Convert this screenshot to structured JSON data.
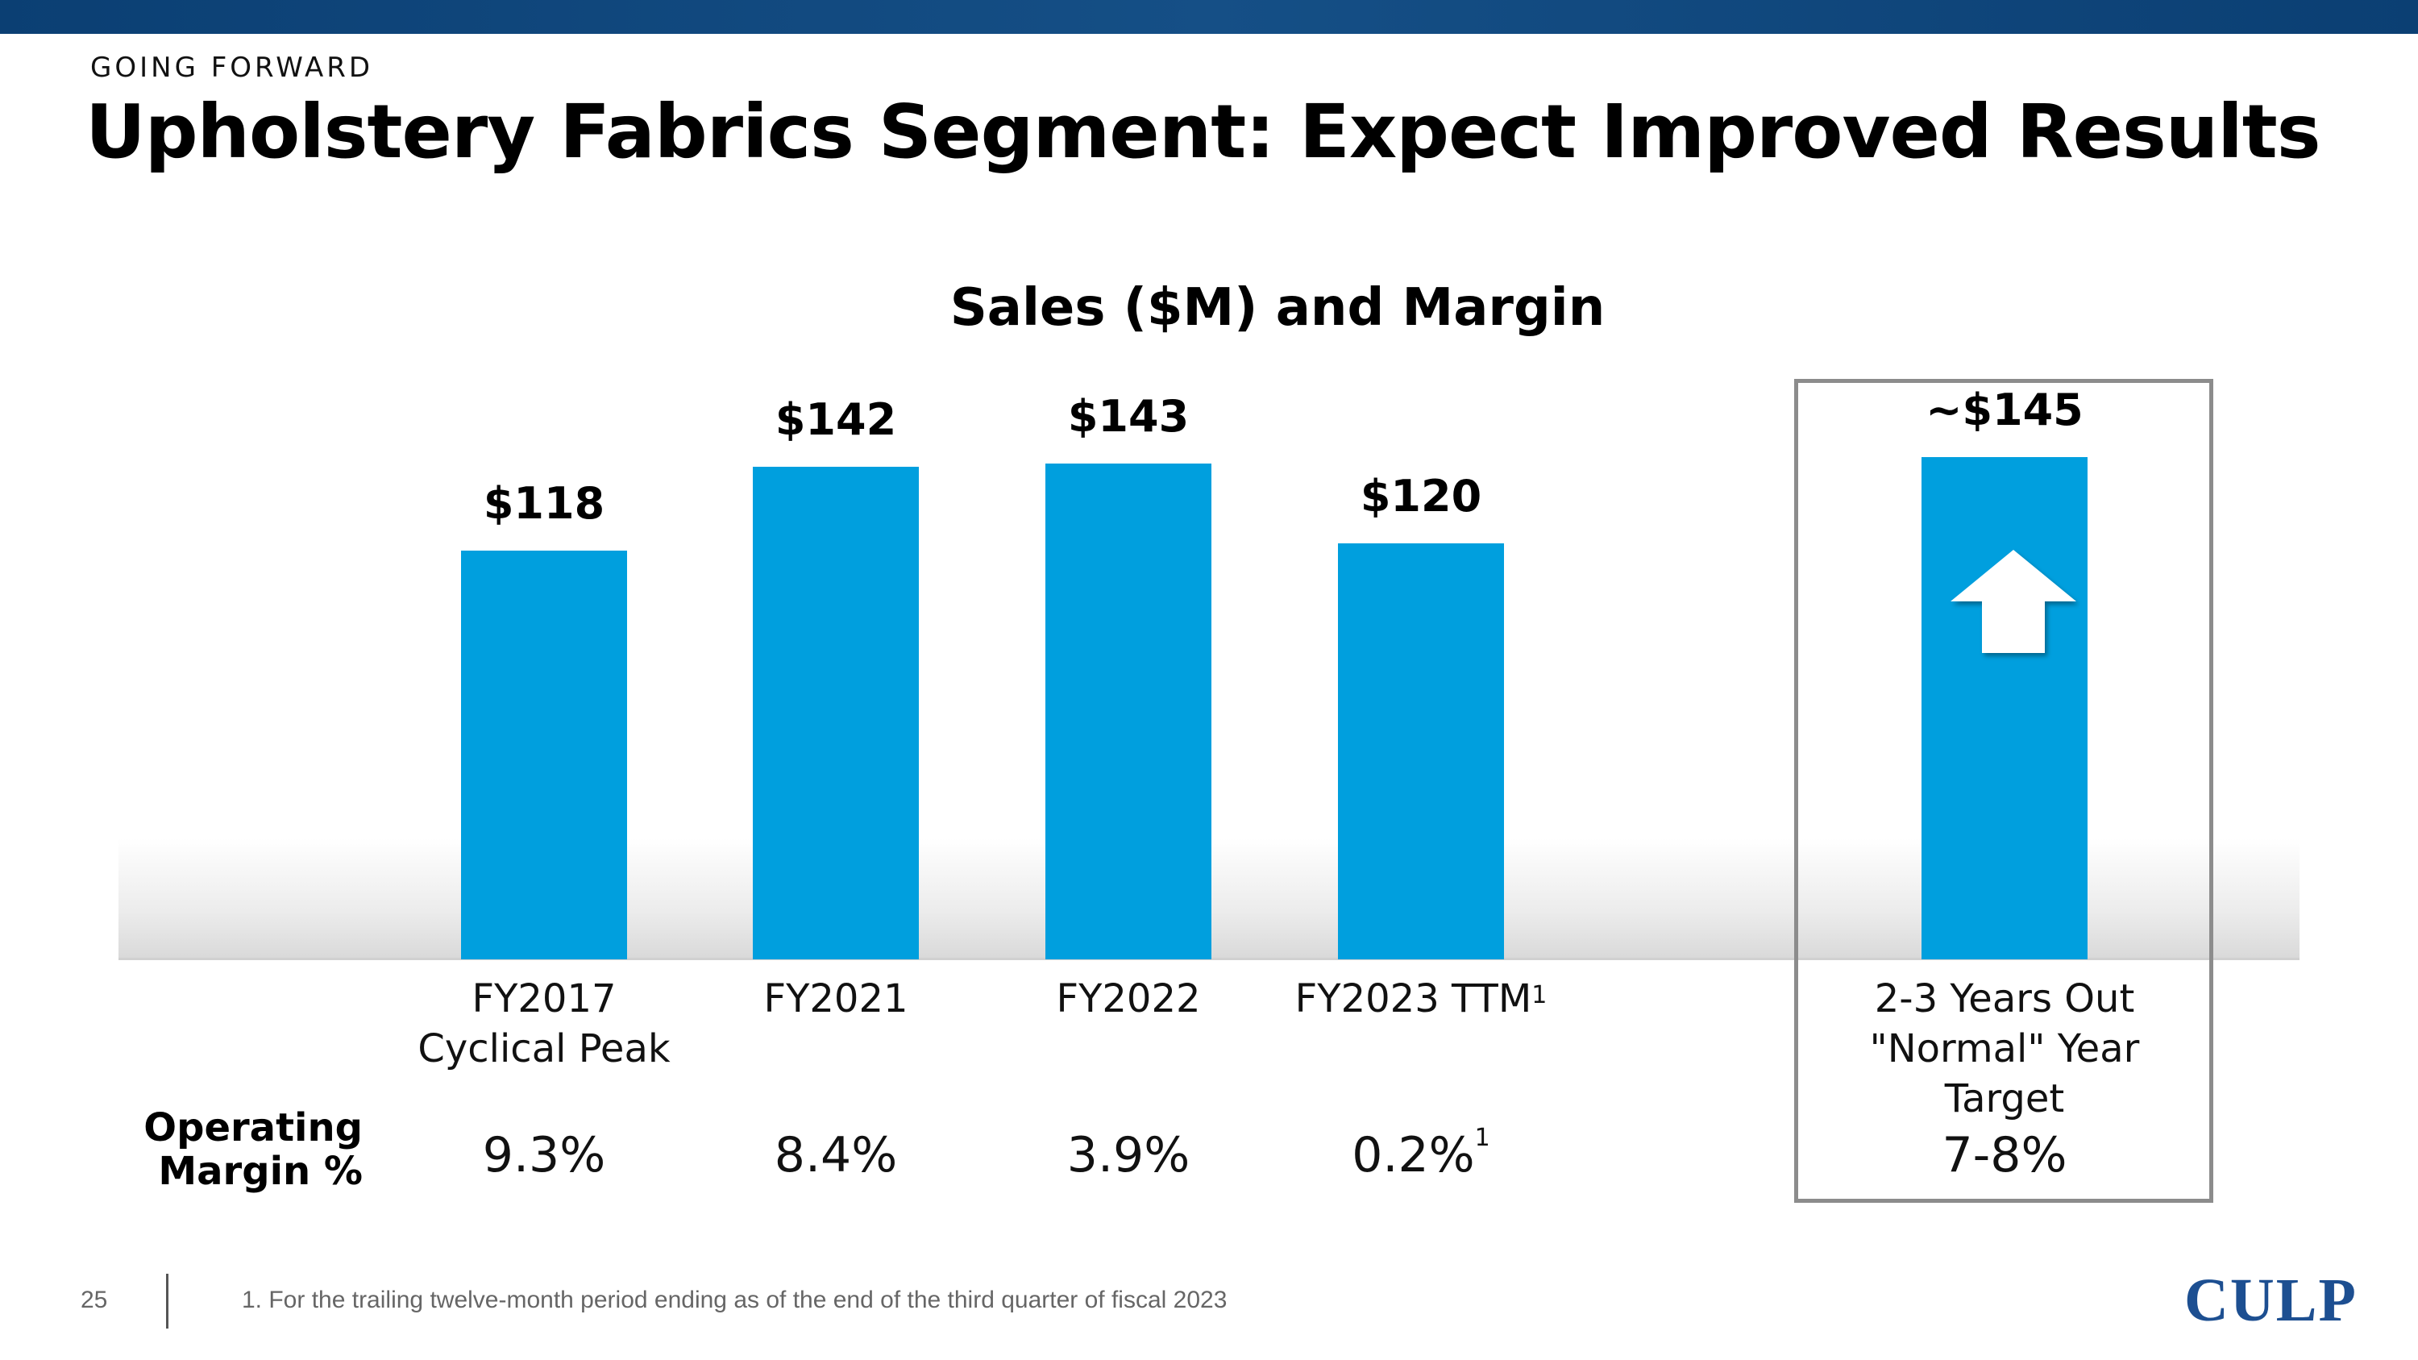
{
  "header": {
    "kicker": "GOING FORWARD",
    "title": "Upholstery Fabrics Segment: Expect Improved Results"
  },
  "chart_data": {
    "type": "bar",
    "title": "Sales ($M) and Margin",
    "xlabel": "",
    "ylabel": "",
    "bar_color": "#009fde",
    "categories": [
      "FY2017 Cyclical Peak",
      "FY2021",
      "FY2022",
      "FY2023 TTM",
      "2-3 Years Out \"Normal\" Year Target"
    ],
    "values": [
      118,
      142,
      143,
      120,
      145
    ],
    "value_labels": [
      "$118",
      "$142",
      "$143",
      "$120",
      "~$145"
    ],
    "category_lines": [
      [
        "FY2017",
        "Cyclical Peak"
      ],
      [
        "FY2021"
      ],
      [
        "FY2022"
      ],
      [
        "FY2023 TTM"
      ],
      [
        "2-3 Years Out",
        "\"Normal\" Year",
        "Target"
      ]
    ],
    "category_footnotes": [
      "",
      "",
      "",
      "1",
      ""
    ],
    "margin_row_label": [
      "Operating",
      "Margin %"
    ],
    "margins": [
      "9.3%",
      "8.4%",
      "3.9%",
      "0.2%",
      "7-8%"
    ],
    "margin_footnotes": [
      "",
      "",
      "",
      "1",
      ""
    ],
    "highlighted_category": "2-3 Years Out \"Normal\" Year Target",
    "annotations": [
      "up-arrow-icon"
    ]
  },
  "footer": {
    "page_number": "25",
    "footnote": "1. For the trailing twelve-month period ending as of the end of the third quarter of fiscal 2023",
    "logo": "CULP",
    "logo_color": "#1d4f91"
  },
  "colors": {
    "top_bar": "#0b3f73"
  }
}
